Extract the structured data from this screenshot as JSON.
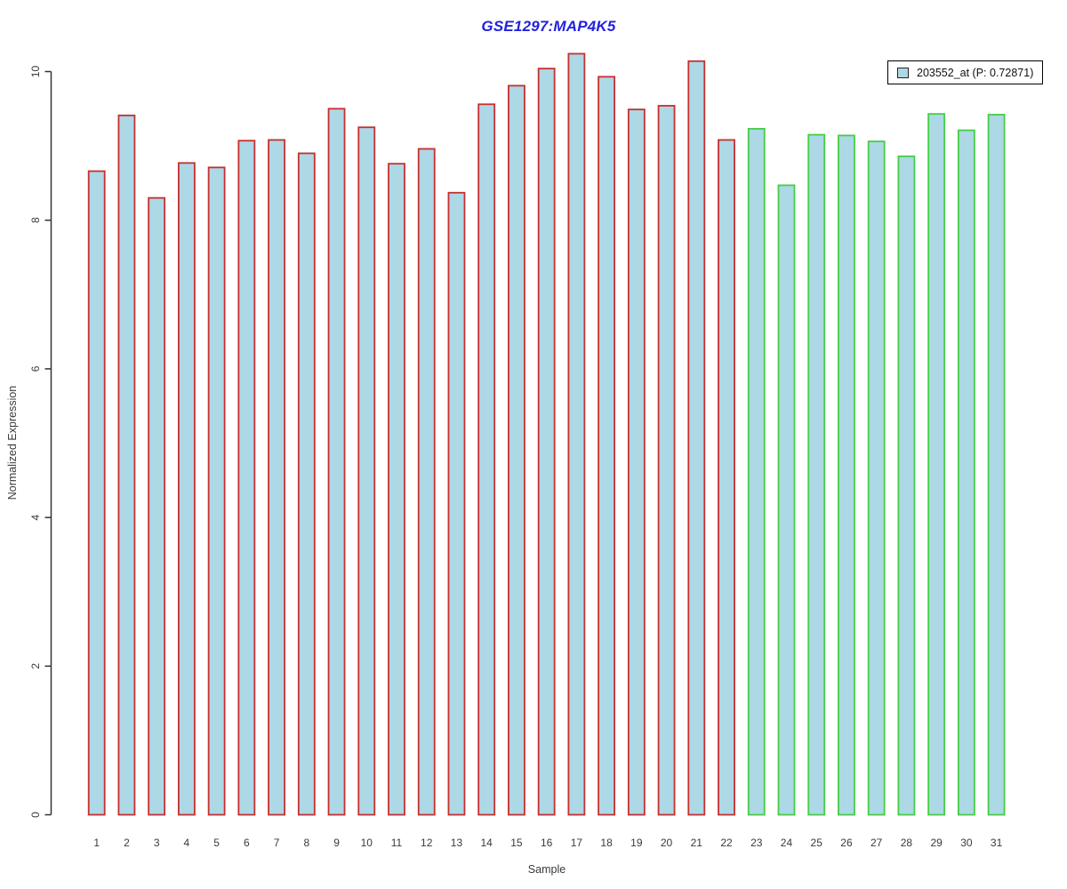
{
  "chart_data": {
    "type": "bar",
    "title": "GSE1297:MAP4K5",
    "title_color": "#2222DD",
    "xlabel": "Sample",
    "ylabel": "Normalized Expression",
    "ylim": [
      0,
      10
    ],
    "yticks": [
      0,
      2,
      4,
      6,
      8,
      10
    ],
    "grid": false,
    "categories": [
      "1",
      "2",
      "3",
      "4",
      "5",
      "6",
      "7",
      "8",
      "9",
      "10",
      "11",
      "12",
      "13",
      "14",
      "15",
      "16",
      "17",
      "18",
      "19",
      "20",
      "21",
      "22",
      "23",
      "24",
      "25",
      "26",
      "27",
      "28",
      "29",
      "30",
      "31"
    ],
    "values": [
      8.66,
      9.41,
      8.3,
      8.77,
      8.71,
      9.07,
      9.08,
      8.9,
      9.5,
      9.25,
      8.76,
      8.96,
      8.37,
      9.56,
      9.81,
      10.04,
      10.24,
      9.93,
      9.49,
      9.54,
      10.14,
      9.08,
      9.23,
      8.47,
      9.15,
      9.14,
      9.06,
      8.86,
      9.43,
      9.21,
      9.42
    ],
    "bar_fill": "#ADD8E6",
    "bar_border_groups": [
      {
        "color": "#C62F2F",
        "count": 22
      },
      {
        "color": "#44CE44",
        "count": 9
      }
    ],
    "axis_color": "#333333",
    "tick_label_color": "#3a3a3a",
    "legend": {
      "label": "203552_at (P: 0.72871)",
      "position": "top-right",
      "swatch_fill": "#ADD8E6",
      "swatch_border": "#222222"
    }
  }
}
